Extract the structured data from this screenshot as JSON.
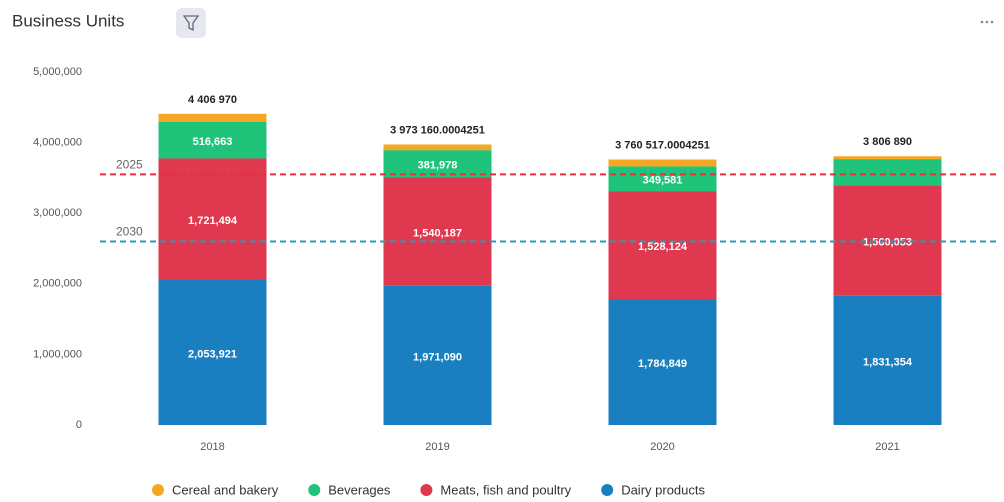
{
  "chart_data": {
    "type": "stacked_bar",
    "title": "Business Units",
    "categories": [
      "2018",
      "2019",
      "2020",
      "2021"
    ],
    "series": [
      {
        "name": "Dairy products",
        "color": "#1a7fc1",
        "values": [
          2053921,
          1971090,
          1784849,
          1831354
        ],
        "value_labels": [
          "2,053,921",
          "1,971,090",
          "1,784,849",
          "1,831,354"
        ]
      },
      {
        "name": "Meats, fish and poultry",
        "color": "#e0384e",
        "values": [
          1721494,
          1540187,
          1528124,
          1560053
        ],
        "value_labels": [
          "1,721,494",
          "1,540,187",
          "1,528,124",
          "1,560,053"
        ]
      },
      {
        "name": "Beverages",
        "color": "#1fc47a",
        "values": [
          516663,
          381978,
          349581,
          375000
        ],
        "value_labels": [
          "516,663",
          "381,978",
          "349,581",
          null
        ]
      },
      {
        "name": "Cereal and bakery",
        "color": "#f5a623",
        "values": [
          114892,
          79905,
          97963,
          40483
        ]
      }
    ],
    "total_labels": [
      "4 406 970",
      "3 973 160.0004251",
      "3 760 517.0004251",
      "3 806 890"
    ],
    "reference_lines": [
      {
        "label": "2025",
        "value": 3550000,
        "color": "#e8303c"
      },
      {
        "label": "2030",
        "value": 2600000,
        "color": "#2a9bbf"
      }
    ],
    "ylim": [
      0,
      5000000
    ],
    "yticks": [
      {
        "value": 0,
        "label": "0"
      },
      {
        "value": 1000000,
        "label": "1,000,000"
      },
      {
        "value": 2000000,
        "label": "2,000,000"
      },
      {
        "value": 3000000,
        "label": "3,000,000"
      },
      {
        "value": 4000000,
        "label": "4,000,000"
      },
      {
        "value": 5000000,
        "label": "5,000,000"
      }
    ]
  }
}
